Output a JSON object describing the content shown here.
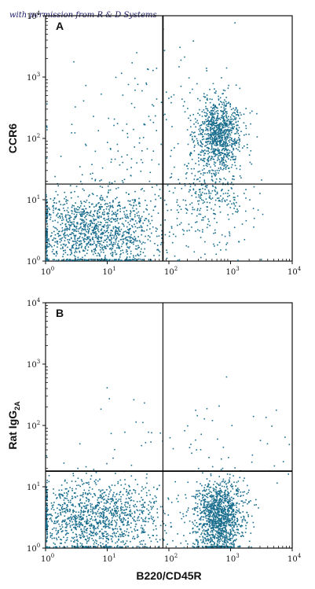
{
  "watermark": "with permission from R & D Systems",
  "chart_data": [
    {
      "type": "scatter",
      "panel_label": "A",
      "xlabel": "",
      "ylabel": "CCR6",
      "xscale": "log",
      "yscale": "log",
      "xlim": [
        1,
        10000
      ],
      "ylim": [
        1,
        10000
      ],
      "x_ticks": [
        {
          "base": "10",
          "exp": "0"
        },
        {
          "base": "10",
          "exp": "1"
        },
        {
          "base": "10",
          "exp": "2"
        },
        {
          "base": "10",
          "exp": "3"
        },
        {
          "base": "10",
          "exp": "4"
        }
      ],
      "y_ticks": [
        {
          "base": "10",
          "exp": "0"
        },
        {
          "base": "10",
          "exp": "1"
        },
        {
          "base": "10",
          "exp": "2"
        },
        {
          "base": "10",
          "exp": "3"
        },
        {
          "base": "10",
          "exp": "4"
        }
      ],
      "quadrant_gate": {
        "x": 80,
        "y": 18
      },
      "point_color": "#1a6e8e",
      "populations": [
        {
          "x_center": 6,
          "y_center": 3,
          "x_spread_decades": 0.55,
          "y_spread_decades": 0.35,
          "count": 1400
        },
        {
          "x_center": 650,
          "y_center": 120,
          "x_spread_decades": 0.18,
          "y_spread_decades": 0.28,
          "count": 900
        },
        {
          "x_center": 450,
          "y_center": 12,
          "x_spread_decades": 0.35,
          "y_spread_decades": 0.45,
          "count": 350
        },
        {
          "x_center": 40,
          "y_center": 150,
          "x_spread_decades": 0.8,
          "y_spread_decades": 0.6,
          "count": 150
        }
      ]
    },
    {
      "type": "scatter",
      "panel_label": "B",
      "xlabel": "B220/CD45R",
      "ylabel": "Rat IgG",
      "ylabel_subscript": "2A",
      "xscale": "log",
      "yscale": "log",
      "xlim": [
        1,
        10000
      ],
      "ylim": [
        1,
        10000
      ],
      "x_ticks": [
        {
          "base": "10",
          "exp": "0"
        },
        {
          "base": "10",
          "exp": "1"
        },
        {
          "base": "10",
          "exp": "2"
        },
        {
          "base": "10",
          "exp": "3"
        },
        {
          "base": "10",
          "exp": "4"
        }
      ],
      "y_ticks": [
        {
          "base": "10",
          "exp": "0"
        },
        {
          "base": "10",
          "exp": "1"
        },
        {
          "base": "10",
          "exp": "2"
        },
        {
          "base": "10",
          "exp": "3"
        },
        {
          "base": "10",
          "exp": "4"
        }
      ],
      "quadrant_gate": {
        "x": 80,
        "y": 18
      },
      "point_color": "#1a6e8e",
      "populations": [
        {
          "x_center": 6,
          "y_center": 3,
          "x_spread_decades": 0.55,
          "y_spread_decades": 0.3,
          "count": 1300
        },
        {
          "x_center": 650,
          "y_center": 3,
          "x_spread_decades": 0.2,
          "y_spread_decades": 0.3,
          "count": 1300
        },
        {
          "x_center": 300,
          "y_center": 40,
          "x_spread_decades": 1.0,
          "y_spread_decades": 0.5,
          "count": 80
        }
      ]
    }
  ]
}
